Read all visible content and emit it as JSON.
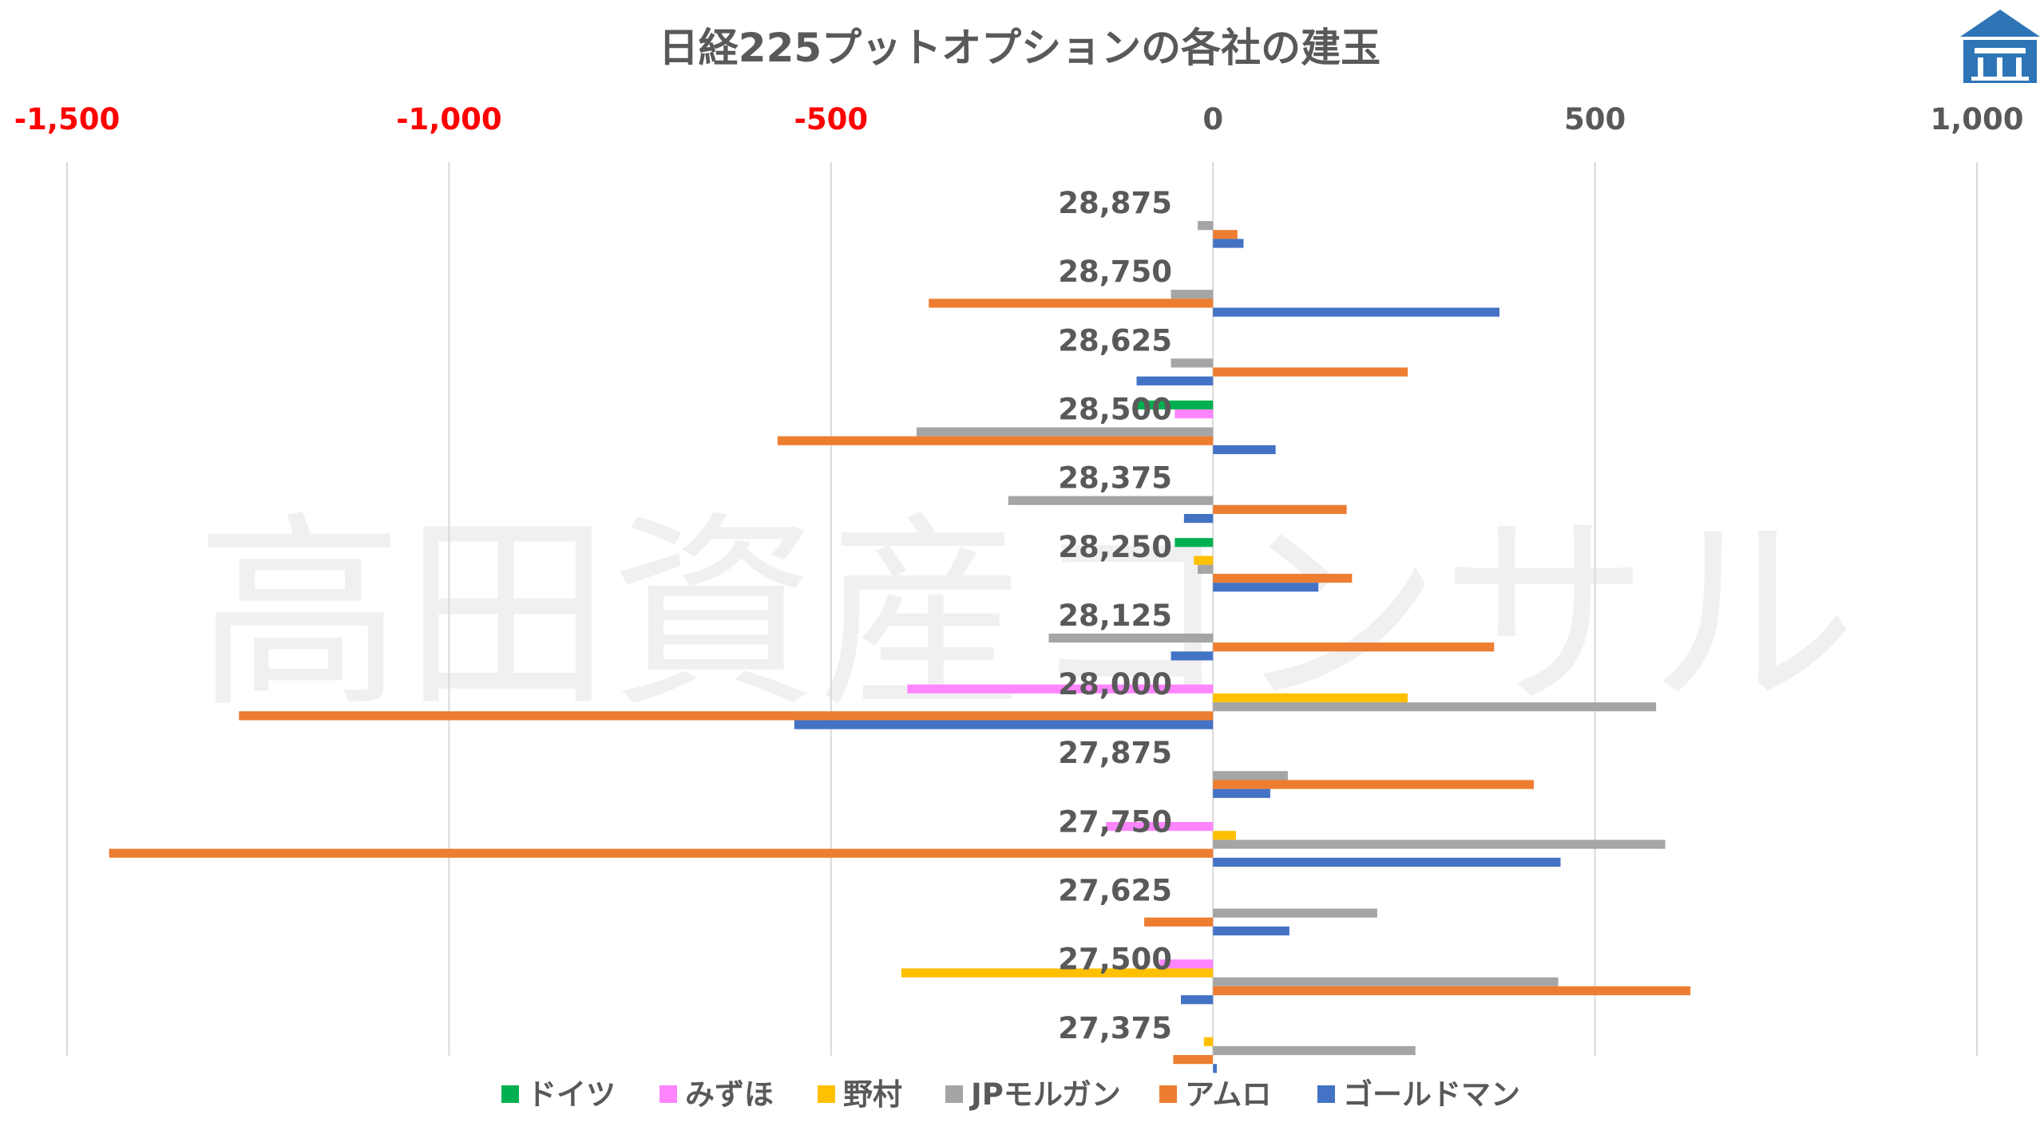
{
  "watermark": "高田資産コンサル",
  "colors": {
    "text": "#595959",
    "negative_tick": "#FF0000",
    "grid": "#D9D9D9",
    "logo": "#2E75B6"
  },
  "icons": {
    "logo": "house-logo-icon"
  },
  "chart_data": {
    "type": "bar",
    "orientation": "horizontal",
    "title": "日経225プットオプションの各社の建玉",
    "xlim": [
      -1500,
      1000
    ],
    "xticks": [
      -1500,
      -1000,
      -500,
      0,
      500,
      1000
    ],
    "xtick_labels": [
      "-1,500",
      "-1,000",
      "-500",
      "0",
      "500",
      "1,000"
    ],
    "negative_tick_color": "#FF0000",
    "grid": true,
    "legend_position": "bottom",
    "categories": [
      "28,875",
      "28,750",
      "28,625",
      "28,500",
      "28,375",
      "28,250",
      "28,125",
      "28,000",
      "27,875",
      "27,750",
      "27,625",
      "27,500",
      "27,375"
    ],
    "series": [
      {
        "name": "ドイツ",
        "color": "#00B050",
        "values": [
          0,
          0,
          0,
          -100,
          0,
          -50,
          0,
          0,
          0,
          0,
          0,
          0,
          0
        ]
      },
      {
        "name": "みずほ",
        "color": "#FF85FF",
        "values": [
          0,
          0,
          0,
          -50,
          0,
          0,
          0,
          -400,
          0,
          -140,
          0,
          -70,
          0
        ]
      },
      {
        "name": "野村",
        "color": "#FFC000",
        "values": [
          0,
          0,
          0,
          0,
          0,
          -25,
          0,
          255,
          0,
          30,
          0,
          -408,
          -12
        ]
      },
      {
        "name": "JPモルガン",
        "color": "#A5A5A5",
        "values": [
          -20,
          -55,
          -55,
          -388,
          -268,
          -20,
          -215,
          580,
          98,
          592,
          215,
          452,
          265
        ]
      },
      {
        "name": "アムロ",
        "color": "#ED7D31",
        "values": [
          32,
          -372,
          255,
          -570,
          175,
          182,
          368,
          -1275,
          420,
          -1445,
          -90,
          625,
          -52
        ]
      },
      {
        "name": "ゴールドマン",
        "color": "#4472C4",
        "values": [
          40,
          375,
          -100,
          82,
          -38,
          138,
          -55,
          -548,
          75,
          455,
          100,
          -42,
          5
        ]
      }
    ]
  }
}
